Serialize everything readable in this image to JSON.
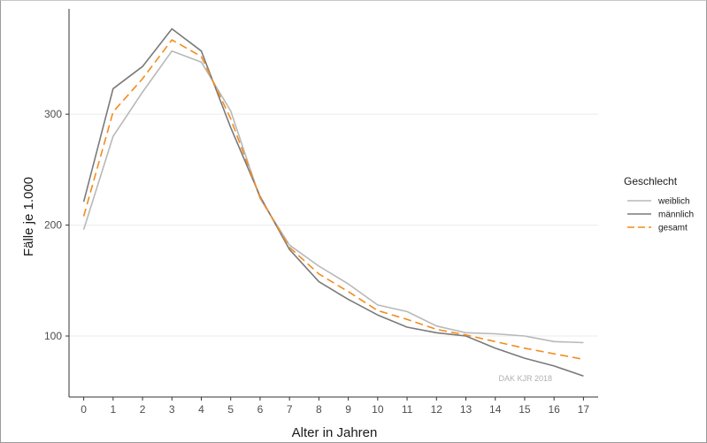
{
  "chart_data": {
    "type": "line",
    "xlabel": "Alter in Jahren",
    "ylabel": "Fälle je 1.000",
    "x": [
      0,
      1,
      2,
      3,
      4,
      5,
      6,
      7,
      8,
      9,
      10,
      11,
      12,
      13,
      14,
      15,
      16,
      17
    ],
    "xlim": [
      -0.5,
      17.5
    ],
    "ylim": [
      45,
      395
    ],
    "yticks": [
      100,
      200,
      300
    ],
    "grid": "horizontal-major",
    "legend": {
      "title": "Geschlecht",
      "position": "right"
    },
    "series": [
      {
        "name": "weiblich",
        "color": "#b8b8b8",
        "dash": "solid",
        "values": [
          196,
          280,
          320,
          357,
          347,
          303,
          224,
          182,
          163,
          147,
          128,
          122,
          109,
          103,
          102,
          100,
          95,
          94
        ]
      },
      {
        "name": "männlich",
        "color": "#7a7a7a",
        "dash": "solid",
        "values": [
          221,
          323,
          343,
          377,
          357,
          288,
          226,
          178,
          149,
          133,
          119,
          108,
          103,
          100,
          89,
          80,
          73,
          64
        ]
      },
      {
        "name": "gesamt",
        "color": "#f28c1e",
        "dash": "dashed",
        "values": [
          208,
          302,
          332,
          367,
          352,
          296,
          225,
          180,
          156,
          140,
          123,
          115,
          106,
          101,
          95,
          89,
          84,
          79
        ]
      }
    ],
    "annotation": "DAK KJR 2018"
  }
}
